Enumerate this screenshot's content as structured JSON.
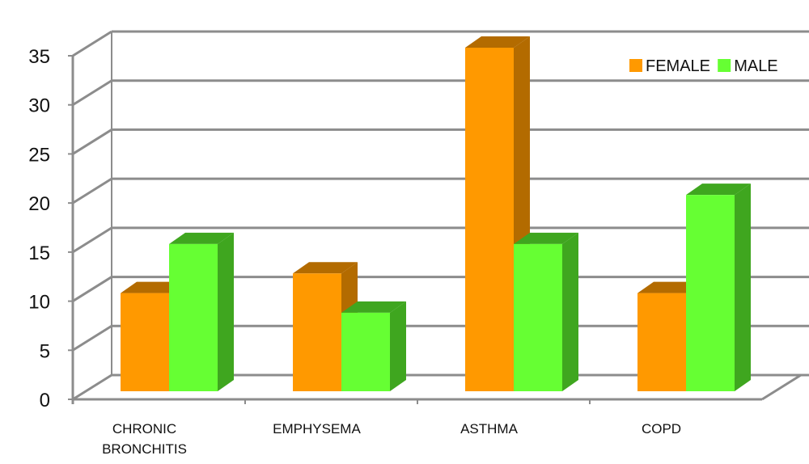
{
  "chart_data": {
    "type": "bar",
    "title": "",
    "xlabel": "",
    "ylabel": "",
    "categories": [
      "CHRONIC BRONCHITIS",
      "EMPHYSEMA",
      "ASTHMA",
      "COPD"
    ],
    "series": [
      {
        "name": "FEMALE",
        "values": [
          10,
          12,
          35,
          10
        ],
        "color": "#ff9900",
        "side_color": "#b36b00"
      },
      {
        "name": "MALE",
        "values": [
          15,
          8,
          15,
          20
        ],
        "color": "#66ff33",
        "side_color": "#3fa61f"
      }
    ],
    "ylim": [
      0,
      35
    ],
    "yticks": [
      0,
      5,
      10,
      15,
      20,
      25,
      30,
      35
    ],
    "grid": true,
    "legend_position": "top-right",
    "style": "3d-clustered-column",
    "gridline_color": "#8c8c8c"
  }
}
